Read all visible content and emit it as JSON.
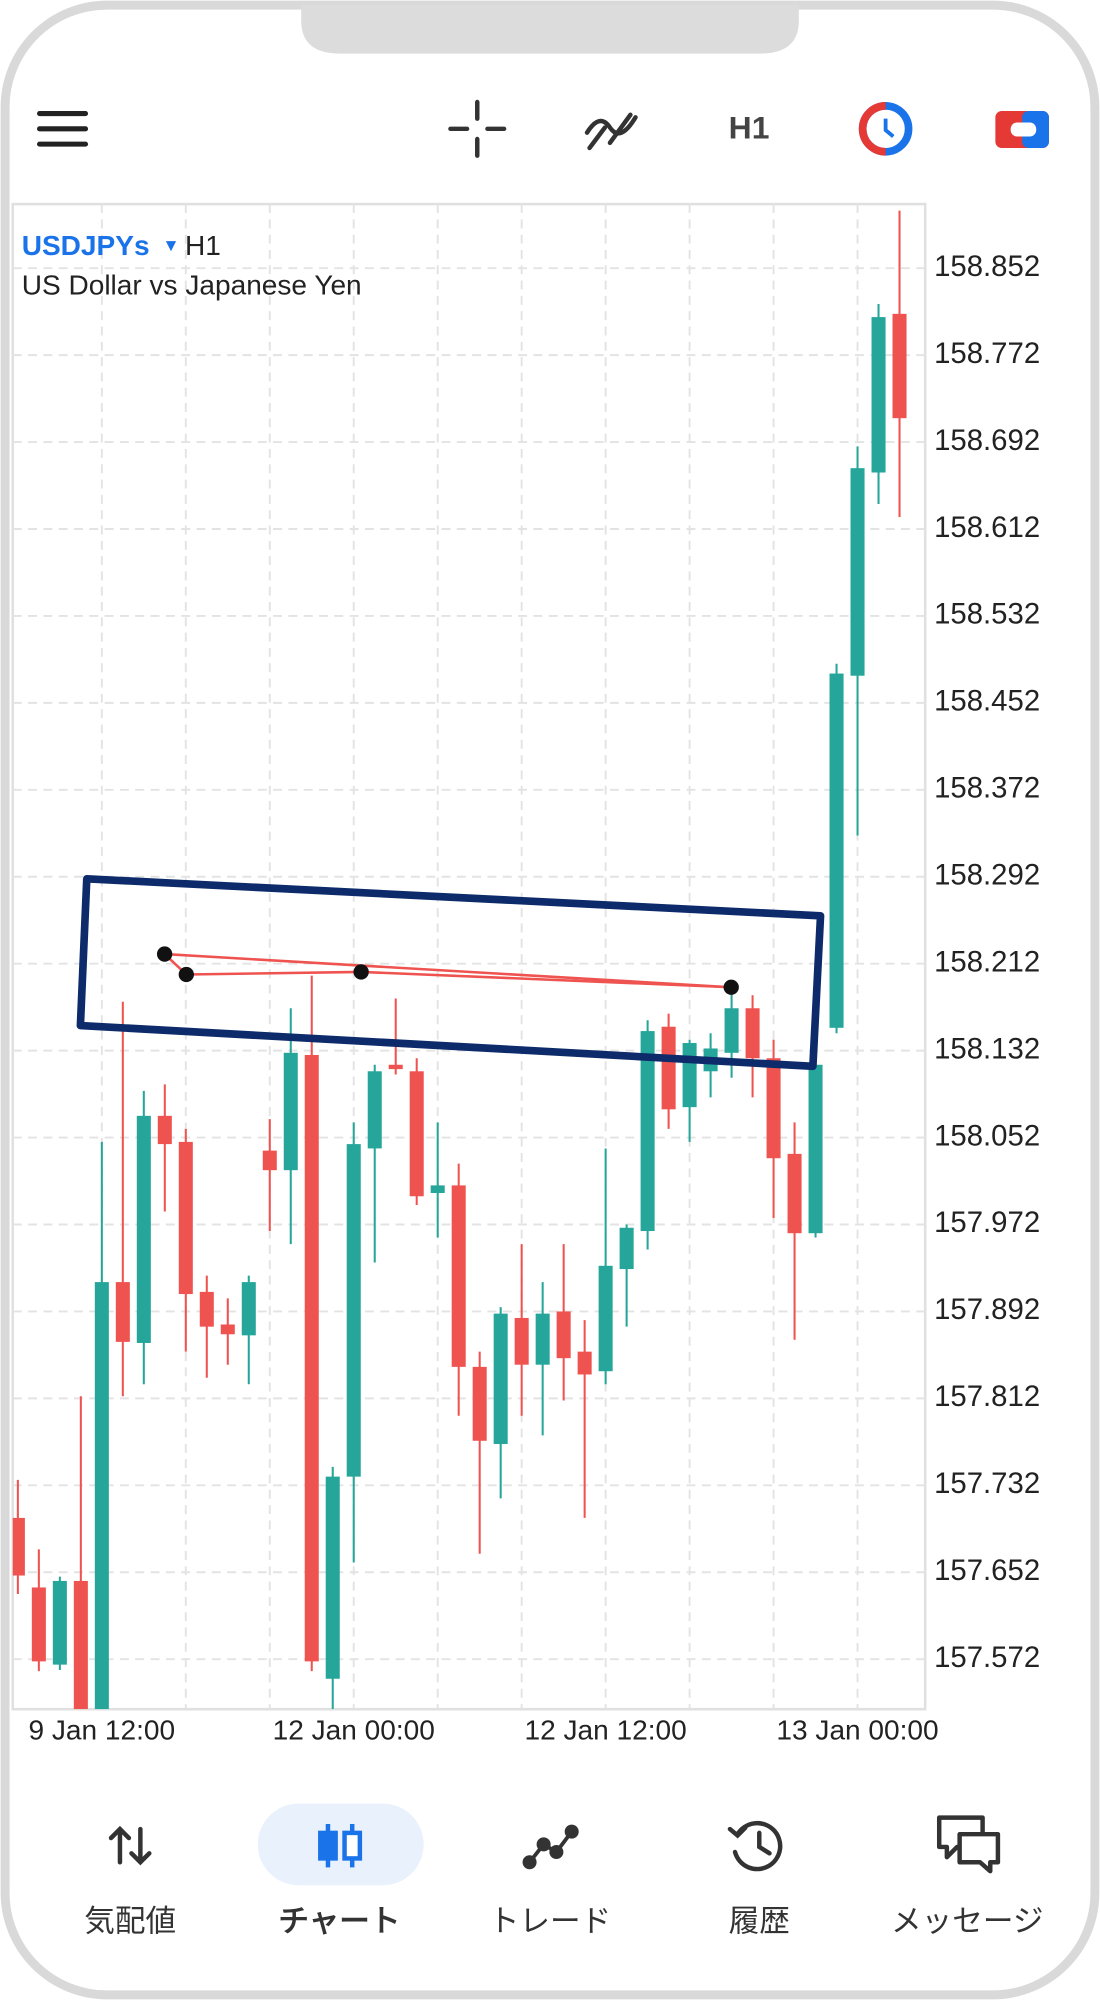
{
  "toolbar": {
    "timeframe": "H1"
  },
  "chart_data": {
    "type": "candlestick",
    "symbol": "USDJPYs",
    "timeframe": "H1",
    "title": "US Dollar vs Japanese Yen",
    "categories": [
      null,
      null,
      null,
      null,
      "9 Jan 12:00",
      null,
      null,
      null,
      null,
      null,
      null,
      null,
      null,
      null,
      null,
      null,
      "12 Jan 00:00",
      null,
      null,
      null,
      null,
      null,
      null,
      null,
      null,
      null,
      null,
      null,
      "12 Jan 12:00",
      null,
      null,
      null,
      null,
      null,
      null,
      null,
      null,
      null,
      null,
      null,
      "13 Jan 00:00",
      null,
      null
    ],
    "open": [
      157.702,
      157.638,
      157.567,
      157.644,
      157.526,
      157.919,
      157.863,
      158.072,
      158.048,
      157.91,
      157.88,
      157.87,
      158.04,
      158.022,
      158.128,
      157.554,
      157.74,
      158.042,
      158.119,
      158.113,
      158.001,
      158.008,
      157.841,
      157.77,
      157.886,
      157.843,
      157.892,
      157.855,
      157.837,
      157.931,
      157.966,
      158.154,
      158.08,
      158.113,
      158.13,
      158.171,
      158.125,
      158.037,
      157.964,
      158.153,
      158.477,
      158.664,
      158.81
    ],
    "high": [
      157.737,
      157.673,
      157.648,
      157.814,
      158.048,
      158.177,
      158.095,
      158.101,
      158.06,
      157.925,
      157.904,
      157.925,
      158.069,
      158.171,
      158.201,
      157.749,
      158.066,
      158.119,
      158.18,
      158.125,
      158.066,
      158.028,
      157.855,
      157.896,
      157.954,
      157.919,
      157.954,
      157.884,
      158.042,
      157.972,
      158.16,
      158.166,
      158.142,
      158.148,
      158.189,
      158.183,
      158.142,
      158.066,
      158.136,
      158.488,
      158.688,
      158.819,
      158.905
    ],
    "low": [
      157.632,
      157.561,
      157.562,
      157.526,
      157.526,
      157.814,
      157.825,
      157.984,
      157.855,
      157.831,
      157.843,
      157.825,
      157.966,
      157.954,
      157.561,
      157.526,
      157.661,
      157.937,
      158.11,
      157.99,
      157.96,
      157.796,
      157.669,
      157.72,
      157.796,
      157.778,
      157.81,
      157.702,
      157.825,
      157.878,
      157.949,
      158.06,
      158.048,
      158.089,
      158.107,
      158.089,
      157.978,
      157.866,
      157.96,
      158.148,
      158.33,
      158.635,
      158.623
    ],
    "close": [
      157.649,
      157.57,
      157.644,
      157.526,
      157.919,
      157.864,
      158.072,
      158.046,
      157.908,
      157.878,
      157.871,
      157.919,
      158.022,
      158.13,
      157.57,
      157.74,
      158.046,
      158.113,
      158.115,
      157.998,
      158.008,
      157.841,
      157.773,
      157.89,
      157.843,
      157.89,
      157.849,
      157.834,
      157.934,
      157.969,
      158.15,
      158.078,
      158.139,
      158.134,
      158.171,
      158.125,
      158.033,
      157.964,
      158.119,
      158.479,
      158.668,
      158.807,
      158.714
    ],
    "up_color": "#26a69a",
    "down_color": "#ef5350",
    "ylim": [
      157.526,
      158.911
    ],
    "yticks": [
      158.852,
      158.772,
      158.692,
      158.612,
      158.532,
      158.452,
      158.372,
      158.292,
      158.212,
      158.132,
      158.052,
      157.972,
      157.892,
      157.812,
      157.732,
      157.652,
      157.572
    ],
    "grid": true
  },
  "nav": {
    "items": [
      "気配値",
      "チャート",
      "トレード",
      "履歴",
      "メッセージ"
    ],
    "active": 1
  }
}
